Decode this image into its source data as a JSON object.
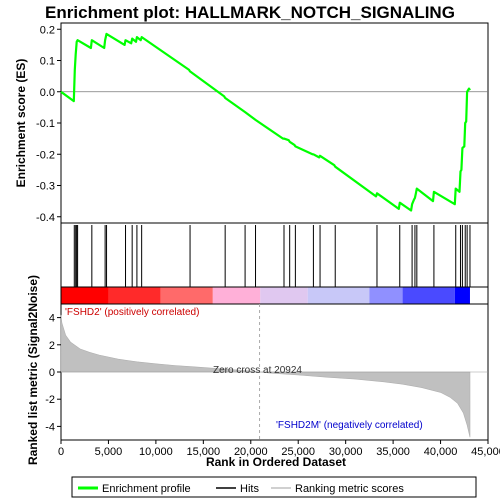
{
  "chart_data": {
    "type": "line",
    "title": "Enrichment plot: HALLMARK_NOTCH_SIGNALING",
    "xlabel": "Rank in Ordered Dataset",
    "xlim": [
      0,
      45000
    ],
    "x_ticks": [
      0,
      5000,
      10000,
      15000,
      20000,
      25000,
      30000,
      35000,
      40000,
      45000
    ],
    "x_tick_labels": [
      "0",
      "5,000",
      "10,000",
      "15,000",
      "20,000",
      "25,000",
      "30,000",
      "35,000",
      "40,000",
      "45,000"
    ],
    "es_panel": {
      "ylabel": "Enrichment score (ES)",
      "ylim": [
        -0.42,
        0.22
      ],
      "y_ticks": [
        -0.4,
        -0.3,
        -0.2,
        -0.1,
        0.0,
        0.1,
        0.2
      ],
      "y_tick_labels": [
        "-0.4",
        "-0.3",
        "-0.2",
        "-0.1",
        "0.0",
        "0.1",
        "0.2"
      ],
      "series": [
        {
          "name": "Enrichment profile",
          "color": "#00ff00",
          "x": [
            0,
            1350,
            1400,
            1450,
            1550,
            1650,
            1750,
            3150,
            3250,
            4550,
            4650,
            4800,
            6700,
            6800,
            7400,
            7500,
            7900,
            8000,
            8400,
            8500,
            13500,
            13600,
            17200,
            17300,
            19400,
            20500,
            23400,
            23500,
            24000,
            24100,
            24600,
            24700,
            26500,
            26600,
            27200,
            27300,
            28800,
            28900,
            33200,
            33300,
            35600,
            35700,
            36900,
            37000,
            37200,
            37300,
            37400,
            37500,
            39200,
            39300,
            41500,
            41600,
            42000,
            42100,
            42200,
            42300,
            42500,
            42600,
            42700,
            42800,
            43000,
            43100
          ],
          "y": [
            0.0,
            -0.03,
            0.02,
            0.07,
            0.12,
            0.16,
            0.165,
            0.14,
            0.165,
            0.14,
            0.165,
            0.185,
            0.15,
            0.165,
            0.155,
            0.17,
            0.16,
            0.175,
            0.165,
            0.175,
            0.07,
            0.065,
            -0.015,
            -0.02,
            -0.065,
            -0.09,
            -0.15,
            -0.15,
            -0.155,
            -0.16,
            -0.17,
            -0.175,
            -0.2,
            -0.2,
            -0.21,
            -0.205,
            -0.235,
            -0.24,
            -0.335,
            -0.325,
            -0.375,
            -0.355,
            -0.38,
            -0.36,
            -0.345,
            -0.34,
            -0.325,
            -0.31,
            -0.35,
            -0.32,
            -0.36,
            -0.31,
            -0.32,
            -0.255,
            -0.25,
            -0.18,
            -0.175,
            -0.1,
            -0.095,
            0.0,
            0.01,
            0.005
          ]
        }
      ]
    },
    "hits_panel": {
      "legend_label": "Hits",
      "positions": [
        1400,
        1550,
        1650,
        1750,
        3250,
        4650,
        4800,
        6800,
        7500,
        8000,
        8500,
        13600,
        17300,
        19400,
        20500,
        23500,
        24100,
        24700,
        26600,
        27300,
        28900,
        33300,
        35700,
        37000,
        37300,
        37500,
        39300,
        41600,
        42100,
        42300,
        42600,
        42800,
        43100
      ]
    },
    "metric_panel": {
      "ylabel": "Ranked list metric (Signal2Noise)",
      "legend_label": "Ranking metric scores",
      "ylim": [
        -5,
        5
      ],
      "y_ticks": [
        -4,
        -2,
        0,
        2,
        4
      ],
      "y_tick_labels": [
        "-4",
        "-2",
        "0",
        "2",
        "4"
      ],
      "zero_cross": 20924,
      "zero_cross_label": "Zero cross at 20924",
      "pos_label": "'FSHD2' (positively correlated)",
      "neg_label": "'FSHD2M' (negatively correlated)",
      "profile": {
        "x": [
          0,
          100,
          500,
          1000,
          2000,
          3000,
          4000,
          6000,
          8000,
          10000,
          12000,
          14000,
          16000,
          18000,
          20000,
          20924,
          22000,
          25000,
          28000,
          31000,
          34000,
          36000,
          38000,
          40000,
          41000,
          41800,
          42400,
          42800,
          43100
        ],
        "y": [
          4.2,
          3.6,
          2.7,
          2.2,
          1.7,
          1.45,
          1.25,
          0.95,
          0.75,
          0.6,
          0.48,
          0.38,
          0.28,
          0.18,
          0.07,
          0.0,
          -0.08,
          -0.22,
          -0.38,
          -0.52,
          -0.72,
          -0.9,
          -1.15,
          -1.5,
          -1.85,
          -2.3,
          -3.0,
          -3.9,
          -4.8
        ]
      }
    },
    "rank_bar": {
      "colors": [
        "#ff0000",
        "#ff2a2a",
        "#ff6a6a",
        "#ffb0d8",
        "#e0c8f0",
        "#c8c8f8",
        "#9090ff",
        "#4a4aff",
        "#0000ff"
      ],
      "stops": [
        0,
        5000,
        10500,
        16000,
        21000,
        26000,
        32500,
        36000,
        41500,
        43100
      ]
    },
    "legend": [
      {
        "label": "Enrichment profile",
        "color": "#00ff00"
      },
      {
        "label": "Hits",
        "color": "#000000"
      },
      {
        "label": "Ranking metric scores",
        "color": "#c0c0c0"
      }
    ]
  }
}
